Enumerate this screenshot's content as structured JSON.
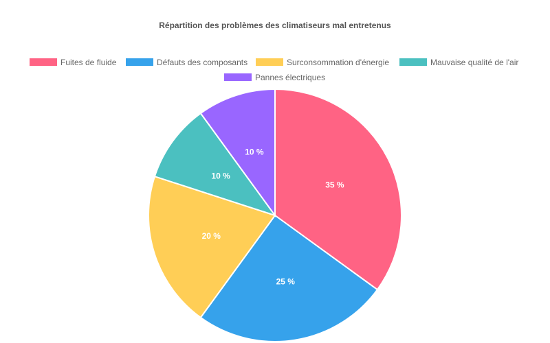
{
  "chart_data": {
    "type": "pie",
    "title": "Répartition des problèmes des climatiseurs mal entretenus",
    "legend_position": "top",
    "categories": [
      "Fuites de fluide",
      "Défauts des composants",
      "Surconsommation d'énergie",
      "Mauvaise qualité de l'air",
      "Pannes électriques"
    ],
    "values": [
      35,
      25,
      20,
      10,
      10
    ],
    "labels": [
      "35 %",
      "25 %",
      "20 %",
      "10 %",
      "10 %"
    ],
    "colors": [
      "#ff6384",
      "#36a2eb",
      "#ffce56",
      "#4bc0c0",
      "#9966ff"
    ]
  }
}
